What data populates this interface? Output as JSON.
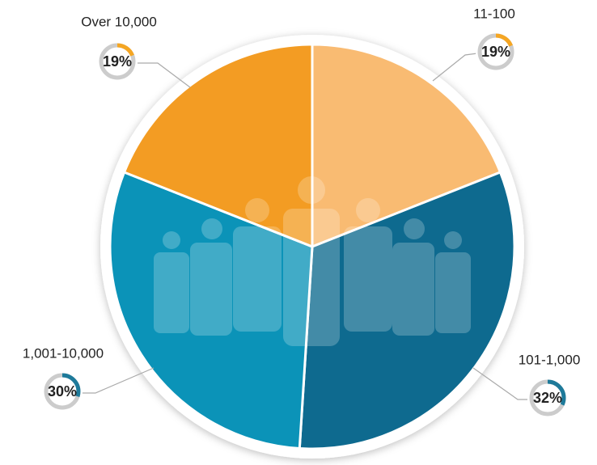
{
  "chart_data": {
    "type": "pie",
    "categories": [
      "11-100",
      "101-1,000",
      "1,001-10,000",
      "Over 10,000"
    ],
    "values": [
      19,
      32,
      30,
      19
    ],
    "value_labels": [
      "19%",
      "32%",
      "30%",
      "19%"
    ],
    "colors": [
      "#F9BB72",
      "#0E6A8F",
      "#0B93B8",
      "#F39C23"
    ]
  }
}
